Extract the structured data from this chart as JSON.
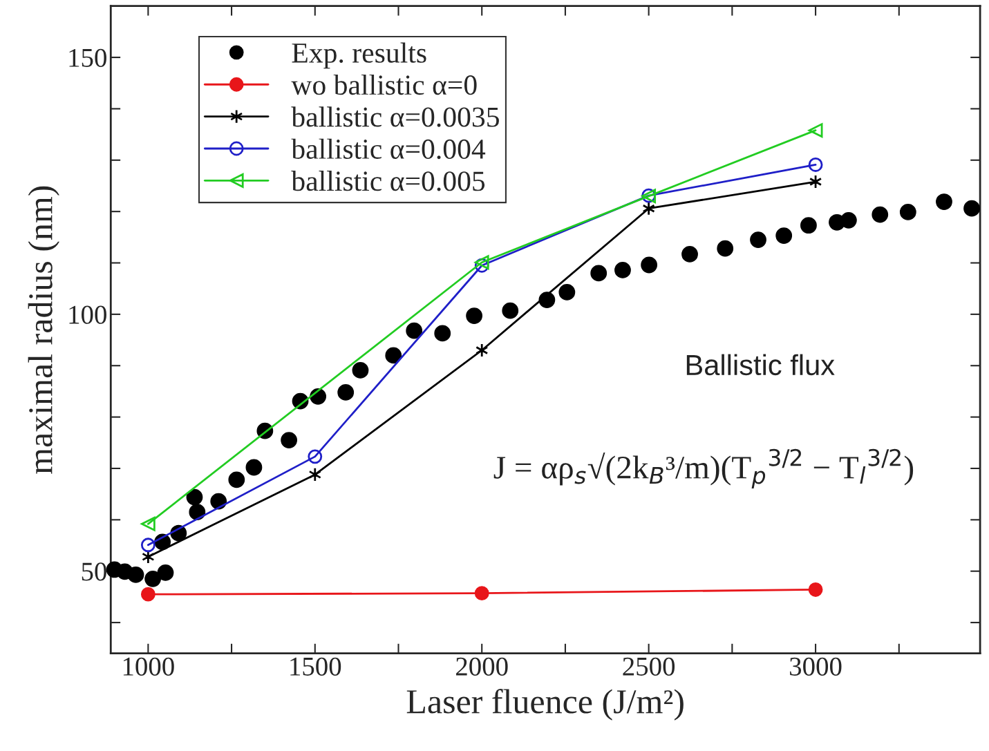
{
  "chart_data": {
    "type": "line",
    "xlabel": "Laser fluence (J/m²)",
    "ylabel": "maximal radius (nm)",
    "xlim": [
      888,
      3493
    ],
    "ylim": [
      34,
      160
    ],
    "xticks": [
      1000,
      {
        "value": 1250,
        "label": null
      },
      1500,
      {
        "value": 1750,
        "label": null
      },
      2000,
      {
        "value": 2250,
        "label": null
      },
      2500,
      {
        "value": 2750,
        "label": null
      },
      3000,
      {
        "value": 3250,
        "label": null
      }
    ],
    "yticks": [
      {
        "value": 40,
        "label": null
      },
      50,
      {
        "value": 60,
        "label": null
      },
      {
        "value": 70,
        "label": null
      },
      {
        "value": 80,
        "label": null
      },
      {
        "value": 90,
        "label": null
      },
      100,
      {
        "value": 110,
        "label": null
      },
      {
        "value": 120,
        "label": null
      },
      {
        "value": 130,
        "label": null
      },
      {
        "value": 140,
        "label": null
      },
      150
    ],
    "grid": false,
    "legend": "top left",
    "series": [
      {
        "name": "Exp. results",
        "type": "scatter",
        "marker": "circle",
        "color": "#000000",
        "x": [
          899,
          930,
          963,
          1014,
          1052,
          1043,
          1091,
          1139,
          1147,
          1211,
          1265,
          1317,
          1350,
          1422,
          1456,
          1509,
          1592,
          1636,
          1735,
          1797,
          1882,
          1977,
          2085,
          2195,
          2255,
          2350,
          2422,
          2501,
          2623,
          2729,
          2828,
          2905,
          2979,
          3064,
          3099,
          3193,
          3277,
          3385,
          3468
        ],
        "values": [
          50.3,
          49.9,
          49.3,
          48.5,
          49.7,
          55.7,
          57.4,
          64.4,
          61.5,
          63.6,
          67.8,
          70.2,
          77.3,
          75.5,
          83.1,
          84.0,
          84.8,
          89.1,
          92.0,
          96.8,
          96.3,
          99.7,
          100.7,
          102.8,
          104.3,
          108.0,
          108.6,
          109.6,
          111.7,
          112.8,
          114.5,
          115.3,
          117.3,
          117.9,
          118.3,
          119.4,
          119.9,
          121.9,
          120.6
        ]
      },
      {
        "name": "wo ballistic α=0",
        "marker": "circle",
        "color": "#e8161a",
        "x": [
          1000,
          2000,
          3000
        ],
        "values": [
          45.5,
          45.7,
          46.4
        ]
      },
      {
        "name": "ballistic α=0.0035",
        "marker": "cross",
        "color": "#000000",
        "x": [
          1000,
          1500,
          2000,
          2500,
          3000
        ],
        "values": [
          52.8,
          68.8,
          93.0,
          120.6,
          125.8
        ]
      },
      {
        "name": "ballistic α=0.004",
        "marker": "circle",
        "color": "#1f1fc8",
        "x": [
          1000,
          1500,
          2000,
          2500,
          3000
        ],
        "values": [
          55.1,
          72.3,
          109.5,
          123.1,
          129.1
        ]
      },
      {
        "name": "ballistic α=0.005",
        "marker": "triangle",
        "color": "#22cc22",
        "x": [
          1000,
          2000,
          2500,
          3000
        ],
        "values": [
          59.2,
          110.1,
          123.0,
          135.8
        ]
      }
    ],
    "annotations": [
      "Ballistic flux",
      "J = αρ$_{s}$√(2k$_{B}$³/m)(T$_{p}$$^{3/2}$ − T$_{l}$$^{3/2}$)"
    ]
  }
}
